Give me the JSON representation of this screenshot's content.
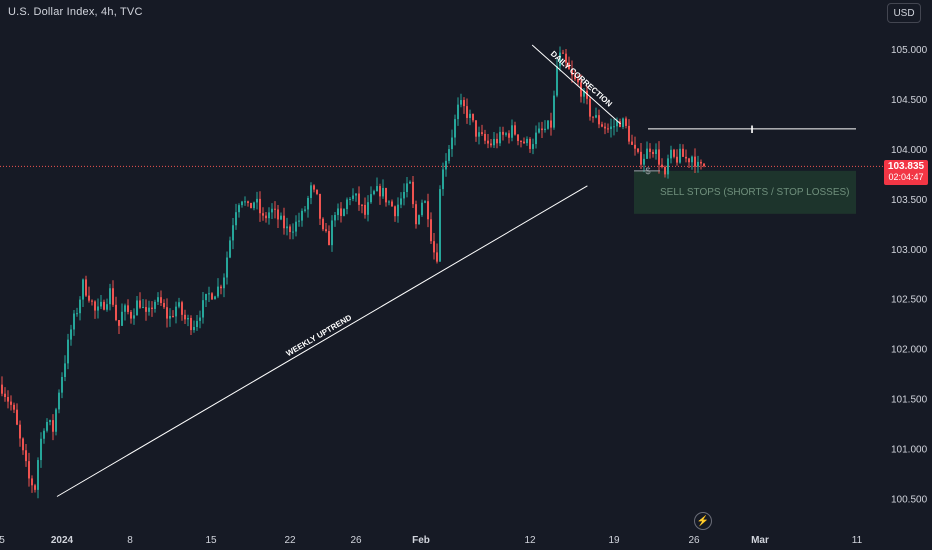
{
  "header": {
    "title": "U.S. Dollar Index, 4h, TVC",
    "currency_button": "USD"
  },
  "price_tag": {
    "price": "103.835",
    "countdown": "02:04:47",
    "color": "#f23645"
  },
  "colors": {
    "background": "#161a25",
    "up": "#26a69a",
    "down": "#ef5350",
    "axis_text": "#d1d4dc",
    "zone": "#1e3a2e",
    "annotation_line": "#ffffff"
  },
  "icons": {
    "replay_button": "lightning-bolt-icon"
  },
  "chart_data": {
    "type": "candlestick",
    "title": "U.S. Dollar Index, 4h, TVC",
    "ylim": [
      100.35,
      105.35
    ],
    "y_ticks": [
      "105.000",
      "104.500",
      "104.000",
      "103.500",
      "103.000",
      "102.500",
      "102.000",
      "101.500",
      "101.000",
      "100.500"
    ],
    "x_ticks": [
      "5",
      "2024",
      "8",
      "15",
      "22",
      "26",
      "Feb",
      "12",
      "19",
      "26",
      "Mar",
      "11"
    ],
    "price_path": [
      [
        0,
        101.65
      ],
      [
        12,
        101.4
      ],
      [
        22,
        100.95
      ],
      [
        28,
        100.7
      ],
      [
        34,
        100.62
      ],
      [
        38,
        101.0
      ],
      [
        44,
        101.3
      ],
      [
        52,
        101.2
      ],
      [
        58,
        101.6
      ],
      [
        64,
        101.9
      ],
      [
        70,
        102.2
      ],
      [
        76,
        102.4
      ],
      [
        82,
        102.65
      ],
      [
        88,
        102.55
      ],
      [
        95,
        102.35
      ],
      [
        102,
        102.45
      ],
      [
        110,
        102.6
      ],
      [
        117,
        102.2
      ],
      [
        122,
        102.4
      ],
      [
        130,
        102.35
      ],
      [
        138,
        102.5
      ],
      [
        146,
        102.3
      ],
      [
        153,
        102.5
      ],
      [
        160,
        102.45
      ],
      [
        168,
        102.3
      ],
      [
        176,
        102.45
      ],
      [
        184,
        102.3
      ],
      [
        192,
        102.25
      ],
      [
        200,
        102.4
      ],
      [
        208,
        102.55
      ],
      [
        216,
        102.6
      ],
      [
        222,
        102.7
      ],
      [
        228,
        103.05
      ],
      [
        234,
        103.4
      ],
      [
        240,
        103.55
      ],
      [
        247,
        103.4
      ],
      [
        254,
        103.5
      ],
      [
        262,
        103.3
      ],
      [
        270,
        103.4
      ],
      [
        278,
        103.3
      ],
      [
        286,
        103.2
      ],
      [
        294,
        103.25
      ],
      [
        302,
        103.35
      ],
      [
        310,
        103.6
      ],
      [
        316,
        103.5
      ],
      [
        322,
        103.15
      ],
      [
        328,
        103.1
      ],
      [
        334,
        103.4
      ],
      [
        340,
        103.3
      ],
      [
        348,
        103.55
      ],
      [
        356,
        103.5
      ],
      [
        364,
        103.35
      ],
      [
        372,
        103.55
      ],
      [
        380,
        103.6
      ],
      [
        386,
        103.5
      ],
      [
        394,
        103.4
      ],
      [
        402,
        103.55
      ],
      [
        410,
        103.65
      ],
      [
        414,
        103.2
      ],
      [
        420,
        103.5
      ],
      [
        426,
        103.45
      ],
      [
        432,
        103.0
      ],
      [
        436,
        102.95
      ],
      [
        440,
        103.8
      ],
      [
        446,
        103.95
      ],
      [
        452,
        104.2
      ],
      [
        458,
        104.45
      ],
      [
        464,
        104.4
      ],
      [
        470,
        104.3
      ],
      [
        476,
        104.15
      ],
      [
        482,
        104.1
      ],
      [
        488,
        104.05
      ],
      [
        496,
        104.1
      ],
      [
        504,
        104.15
      ],
      [
        512,
        104.2
      ],
      [
        520,
        104.1
      ],
      [
        528,
        104.05
      ],
      [
        536,
        104.15
      ],
      [
        544,
        104.2
      ],
      [
        550,
        104.25
      ],
      [
        554,
        104.6
      ],
      [
        557,
        104.95
      ],
      [
        562,
        104.9
      ],
      [
        567,
        104.8
      ],
      [
        572,
        104.7
      ],
      [
        578,
        104.65
      ],
      [
        584,
        104.5
      ],
      [
        590,
        104.35
      ],
      [
        596,
        104.3
      ],
      [
        602,
        104.25
      ],
      [
        608,
        104.2
      ],
      [
        614,
        104.25
      ],
      [
        620,
        104.3
      ],
      [
        626,
        104.2
      ],
      [
        632,
        104.0
      ],
      [
        638,
        103.9
      ],
      [
        644,
        103.95
      ],
      [
        650,
        104.05
      ],
      [
        656,
        103.95
      ],
      [
        660,
        103.85
      ],
      [
        664,
        103.7
      ],
      [
        668,
        103.95
      ],
      [
        674,
        103.9
      ],
      [
        680,
        103.95
      ],
      [
        686,
        103.9
      ],
      [
        692,
        103.95
      ],
      [
        698,
        103.8
      ],
      [
        704,
        103.85
      ]
    ],
    "annotations": [
      {
        "type": "trendline",
        "label": "WEEKLY UPTREND",
        "from": [
          "2024-01-02",
          100.53
        ],
        "to": [
          "2024-02-19",
          103.64
        ]
      },
      {
        "type": "trendline",
        "label": "DAILY CORRECTION",
        "from": [
          "2024-02-14",
          105.05
        ],
        "to": [
          "2024-02-22",
          104.26
        ]
      },
      {
        "type": "horizontal_level",
        "price": 104.21,
        "marker": "I"
      },
      {
        "type": "zone",
        "label": "SELL STOPS (SHORTS / STOP LOSSES)",
        "marker": "$",
        "price_top": 103.79,
        "price_bottom": 103.36
      }
    ],
    "current_price": 103.835,
    "grid": false
  }
}
